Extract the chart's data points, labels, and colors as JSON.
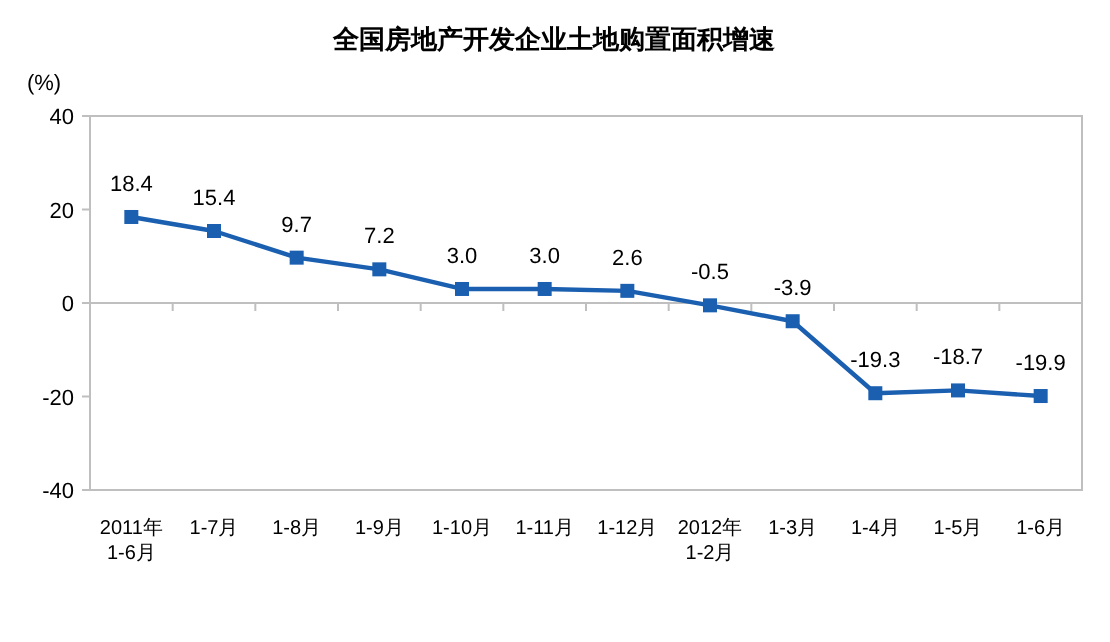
{
  "chart_data": {
    "type": "line",
    "title": "全国房地产开发企业土地购置面积增速",
    "ylabel": "(%)",
    "categories": [
      "2011年\n1-6月",
      "1-7月",
      "1-8月",
      "1-9月",
      "1-10月",
      "1-11月",
      "1-12月",
      "2012年\n1-2月",
      "1-3月",
      "1-4月",
      "1-5月",
      "1-6月"
    ],
    "values": [
      18.4,
      15.4,
      9.7,
      7.2,
      3.0,
      3.0,
      2.6,
      -0.5,
      -3.9,
      -19.3,
      -18.7,
      -19.9
    ],
    "value_labels": [
      "18.4",
      "15.4",
      "9.7",
      "7.2",
      "3.0",
      "3.0",
      "2.6",
      "-0.5",
      "-3.9",
      "-19.3",
      "-18.7",
      "-19.9"
    ],
    "color": "#1a5fb0",
    "marker": "square",
    "line_style": "solid",
    "ylim": [
      -40,
      40
    ],
    "yticks": [
      -40,
      -20,
      0,
      20,
      40
    ]
  }
}
